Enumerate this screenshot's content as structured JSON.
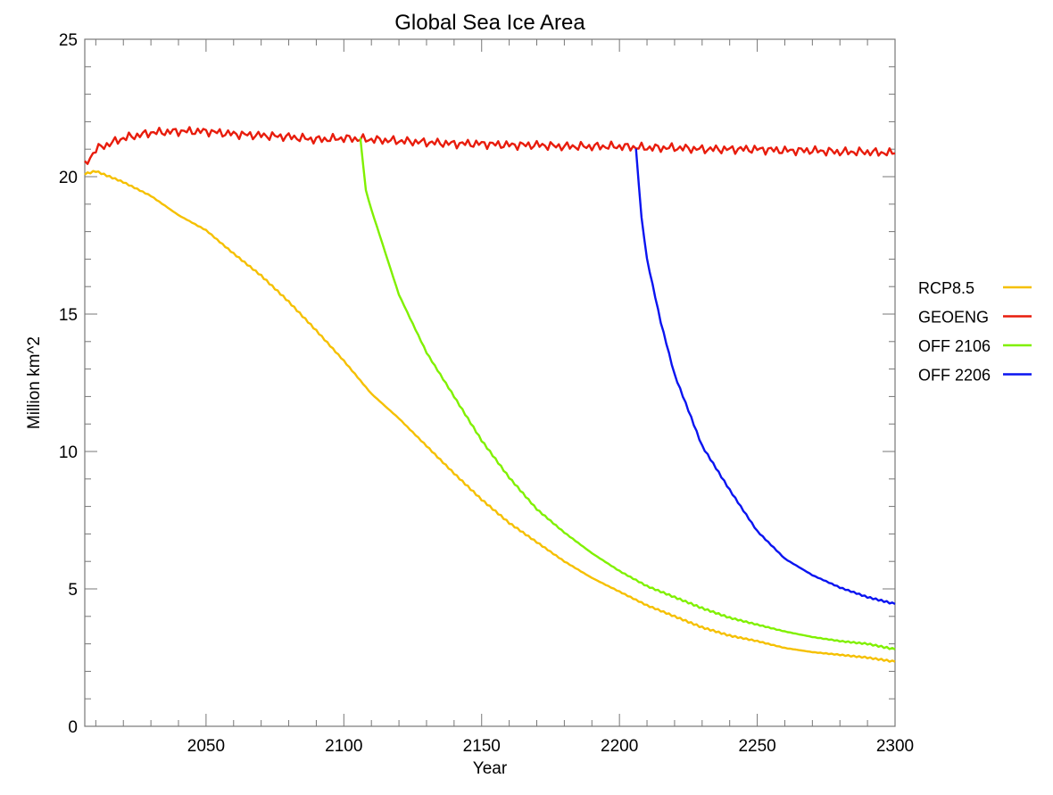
{
  "chart_data": {
    "type": "line",
    "title": "Global Sea Ice Area",
    "xlabel": "Year",
    "ylabel": "Million km^2",
    "xlim": [
      2006,
      2300
    ],
    "ylim": [
      0,
      25
    ],
    "xticks": [
      2050,
      2100,
      2150,
      2200,
      2250,
      2300
    ],
    "yticks": [
      0,
      5,
      10,
      15,
      20,
      25
    ],
    "grid": false,
    "legend_position": "right",
    "series": [
      {
        "name": "RCP8.5",
        "color": "#f5c000",
        "x": [
          2006,
          2010,
          2020,
          2030,
          2040,
          2050,
          2060,
          2070,
          2080,
          2090,
          2100,
          2110,
          2120,
          2130,
          2140,
          2150,
          2160,
          2170,
          2180,
          2190,
          2200,
          2210,
          2220,
          2230,
          2240,
          2250,
          2260,
          2270,
          2280,
          2290,
          2300
        ],
        "y": [
          20.1,
          20.2,
          19.8,
          19.3,
          18.6,
          18.05,
          17.2,
          16.4,
          15.45,
          14.4,
          13.3,
          12.1,
          11.2,
          10.2,
          9.2,
          8.25,
          7.4,
          6.7,
          6.0,
          5.4,
          4.9,
          4.4,
          4.0,
          3.6,
          3.3,
          3.1,
          2.85,
          2.7,
          2.6,
          2.5,
          2.35
        ]
      },
      {
        "name": "GEOENG",
        "color": "#e81c0c",
        "x": [
          2006,
          2010,
          2020,
          2030,
          2040,
          2050,
          2060,
          2070,
          2080,
          2090,
          2100,
          2110,
          2120,
          2130,
          2140,
          2150,
          2160,
          2170,
          2180,
          2190,
          2200,
          2210,
          2220,
          2230,
          2240,
          2250,
          2260,
          2270,
          2280,
          2290,
          2300
        ],
        "y": [
          20.4,
          21.0,
          21.4,
          21.6,
          21.65,
          21.65,
          21.55,
          21.5,
          21.45,
          21.35,
          21.4,
          21.35,
          21.3,
          21.25,
          21.2,
          21.2,
          21.15,
          21.15,
          21.1,
          21.1,
          21.1,
          21.05,
          21.05,
          21.0,
          21.0,
          21.0,
          20.95,
          20.95,
          20.9,
          20.9,
          20.85
        ]
      },
      {
        "name": "OFF 2106",
        "color": "#80f000",
        "x": [
          2106,
          2108,
          2110,
          2120,
          2130,
          2140,
          2150,
          2160,
          2170,
          2180,
          2190,
          2200,
          2210,
          2220,
          2230,
          2240,
          2250,
          2260,
          2270,
          2280,
          2290,
          2300
        ],
        "y": [
          21.4,
          19.5,
          18.8,
          15.7,
          13.6,
          12.0,
          10.4,
          9.05,
          7.9,
          7.05,
          6.3,
          5.65,
          5.1,
          4.7,
          4.3,
          3.95,
          3.7,
          3.45,
          3.25,
          3.1,
          3.0,
          2.8
        ]
      },
      {
        "name": "OFF 2206",
        "color": "#0a14f0",
        "x": [
          2206,
          2208,
          2210,
          2215,
          2220,
          2230,
          2240,
          2250,
          2260,
          2270,
          2280,
          2290,
          2300
        ],
        "y": [
          21.0,
          18.5,
          17.0,
          14.7,
          12.8,
          10.2,
          8.6,
          7.1,
          6.1,
          5.5,
          5.05,
          4.7,
          4.45
        ]
      }
    ]
  }
}
